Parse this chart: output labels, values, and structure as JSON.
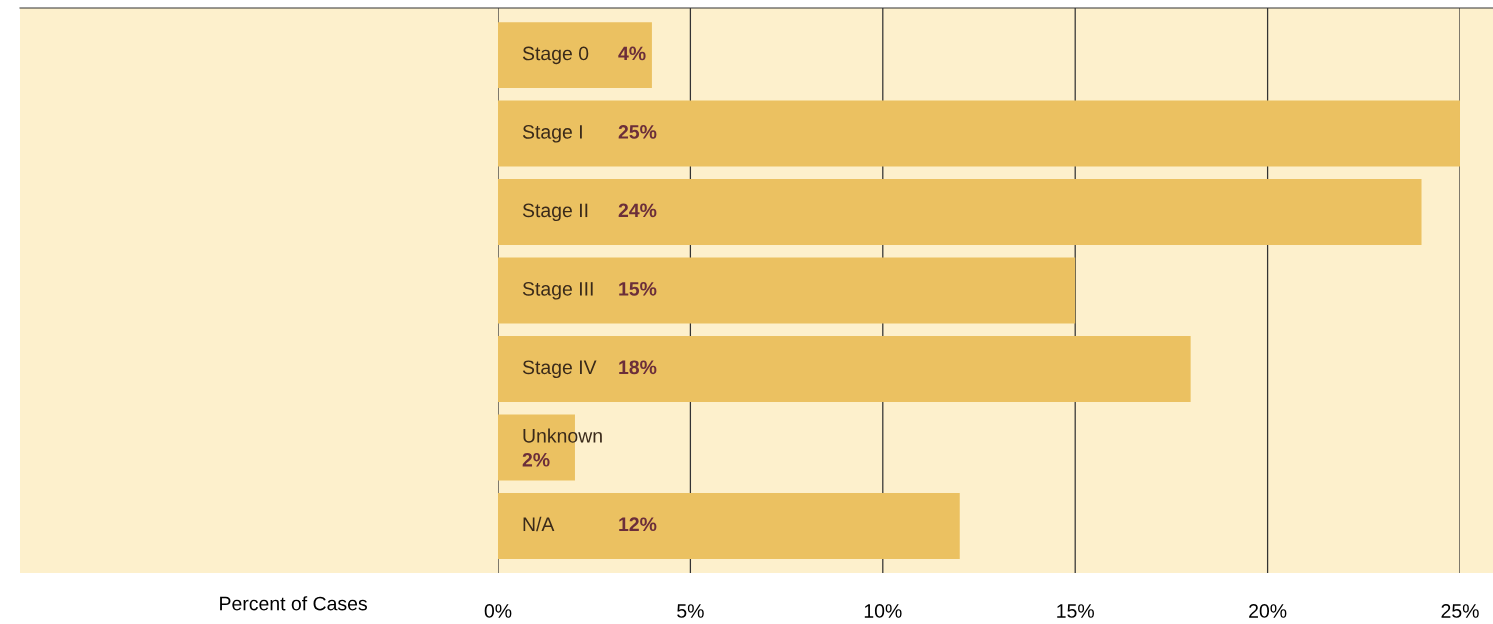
{
  "chart_data": {
    "type": "bar",
    "orientation": "horizontal",
    "annotations": [
      "Percent of Cases"
    ],
    "categories": [
      "Stage 0",
      "Stage I",
      "Stage II",
      "Stage III",
      "Stage IV",
      "Unknown",
      "N/A"
    ],
    "values": [
      4,
      25,
      24,
      15,
      18,
      2,
      12
    ],
    "color": "#ebc161",
    "xlim": [
      0,
      25
    ],
    "xticks": [
      {
        "value": 0,
        "label": "0%"
      },
      {
        "value": 5,
        "label": "5%"
      },
      {
        "value": 10,
        "label": "10%"
      },
      {
        "value": 15,
        "label": "15%"
      },
      {
        "value": 20,
        "label": "20%"
      },
      {
        "value": 25,
        "label": "25%"
      }
    ],
    "value_labels": [
      "4%",
      "25%",
      "24%",
      "15%",
      "18%",
      "2%",
      "12%"
    ],
    "tick_labels": "x",
    "grid": "x"
  }
}
